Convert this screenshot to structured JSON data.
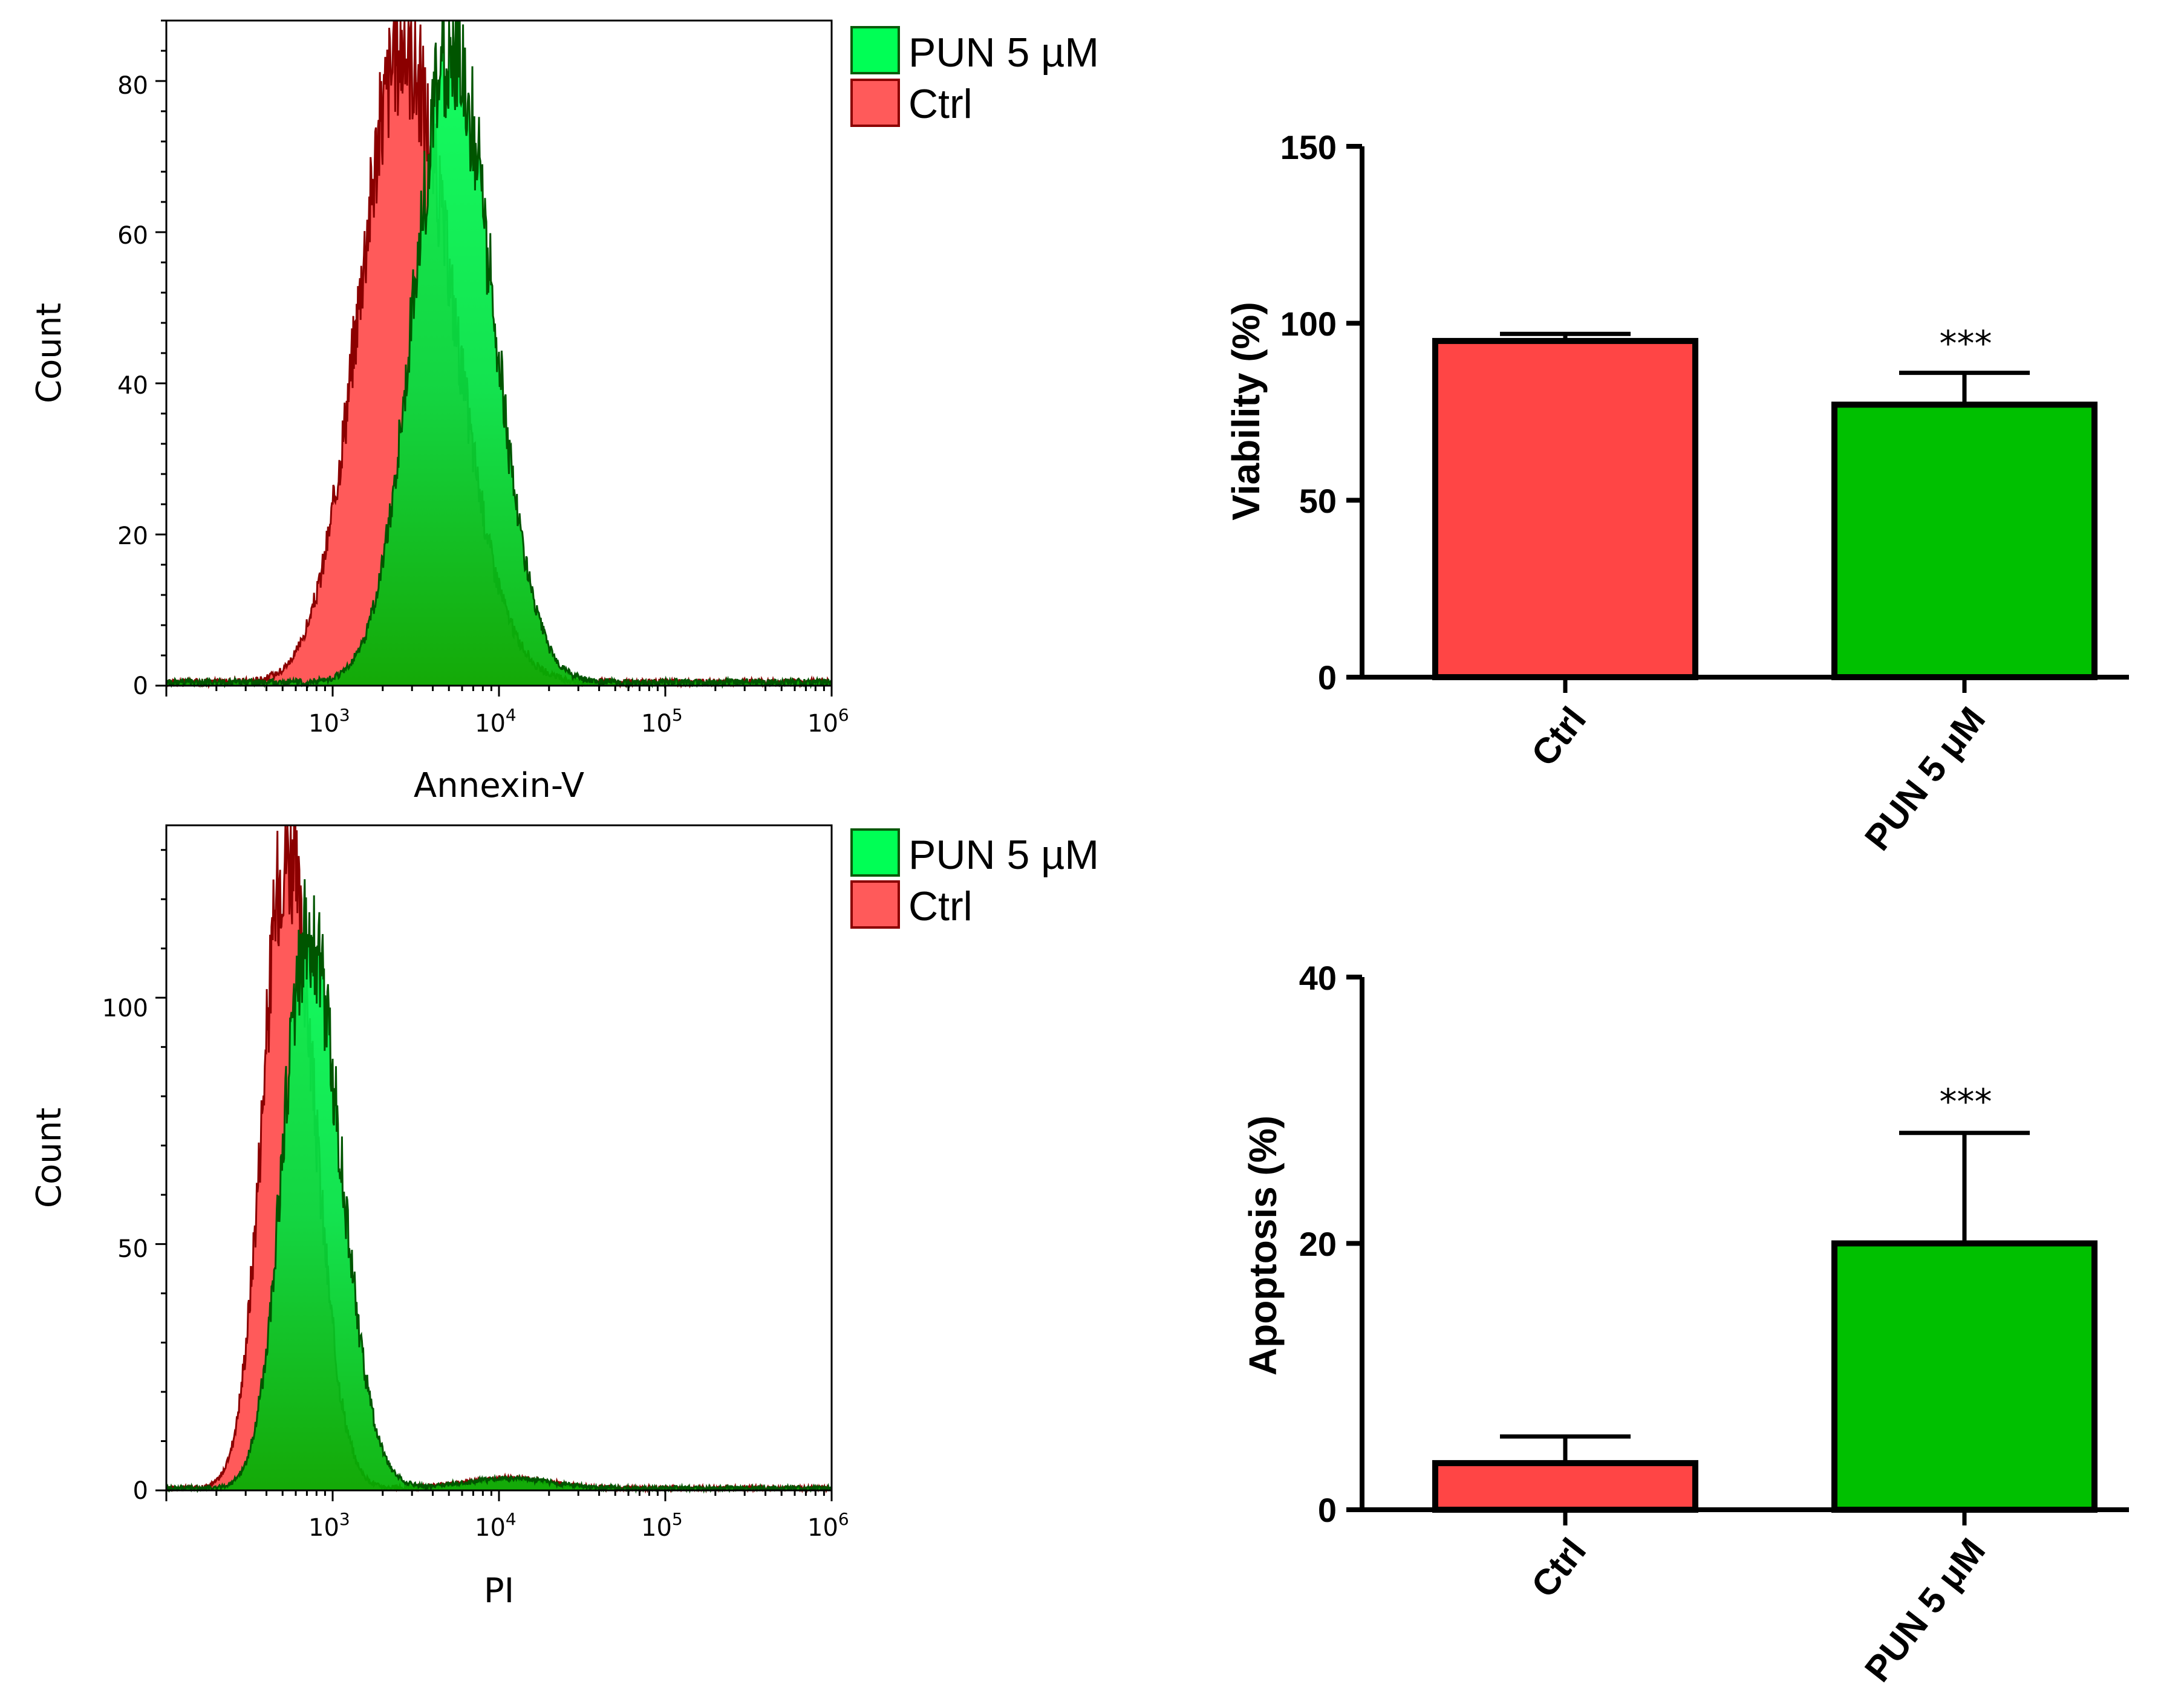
{
  "colors": {
    "ctrl_fill": "#ff5a5a",
    "ctrl_edge": "#8b0000",
    "pun_fill_top": "#00ff55",
    "pun_fill_bottom": "#00b000",
    "pun_edge": "#005500",
    "bar_red": "#ff4545",
    "bar_green": "#00c000"
  },
  "chart_data": [
    {
      "id": "annexin_histogram",
      "type": "area",
      "xlabel": "Annexin-V",
      "ylabel": "Count",
      "xscale": "log",
      "xlim_log10": [
        2.0,
        6.0
      ],
      "ylim": [
        0,
        88
      ],
      "yticks": [
        "0",
        "20",
        "40",
        "60",
        "80"
      ],
      "ytick_values": [
        0,
        20,
        40,
        60,
        80
      ],
      "xticks": [
        {
          "base": "10",
          "exp": "3",
          "value_log10": 3
        },
        {
          "base": "10",
          "exp": "4",
          "value_log10": 4
        },
        {
          "base": "10",
          "exp": "5",
          "value_log10": 5
        },
        {
          "base": "10",
          "exp": "6",
          "value_log10": 6
        }
      ],
      "legend": [
        "PUN 5 µM",
        "Ctrl"
      ],
      "legend_position": "top-right",
      "series": [
        {
          "name": "Ctrl",
          "peak_log10": 3.42,
          "peak_count": 84,
          "width_log10": 0.26,
          "skew": 1.15
        },
        {
          "name": "PUN 5 µM",
          "peak_log10": 3.72,
          "peak_count": 84,
          "width_log10": 0.23,
          "skew": 1.05
        }
      ]
    },
    {
      "id": "pi_histogram",
      "type": "area",
      "xlabel": "PI",
      "ylabel": "Count",
      "xscale": "log",
      "xlim_log10": [
        2.0,
        6.0
      ],
      "ylim": [
        0,
        135
      ],
      "yticks": [
        "0",
        "50",
        "100"
      ],
      "ytick_values": [
        0,
        50,
        100
      ],
      "xticks": [
        {
          "base": "10",
          "exp": "3",
          "value_log10": 3
        },
        {
          "base": "10",
          "exp": "4",
          "value_log10": 4
        },
        {
          "base": "10",
          "exp": "5",
          "value_log10": 5
        },
        {
          "base": "10",
          "exp": "6",
          "value_log10": 6
        }
      ],
      "legend": [
        "PUN 5 µM",
        "Ctrl"
      ],
      "legend_position": "top-right",
      "series": [
        {
          "name": "Ctrl",
          "peak_log10": 2.72,
          "peak_count": 130,
          "width_log10": 0.14,
          "skew": 1.2
        },
        {
          "name": "PUN 5 µM",
          "peak_log10": 2.85,
          "peak_count": 113,
          "width_log10": 0.15,
          "skew": 1.3
        }
      ]
    },
    {
      "id": "viability_bar",
      "type": "bar",
      "ylabel": "Viability (%)",
      "ylim": [
        0,
        150
      ],
      "yticks": [
        "0",
        "50",
        "100",
        "150"
      ],
      "ytick_values": [
        0,
        50,
        100,
        150
      ],
      "categories": [
        "Ctrl",
        "PUN 5 μM"
      ],
      "values": [
        95,
        77
      ],
      "errors": [
        2,
        9
      ],
      "annotations": [
        "",
        "***"
      ]
    },
    {
      "id": "apoptosis_bar",
      "type": "bar",
      "ylabel": "Apoptosis (%)",
      "ylim": [
        0,
        40
      ],
      "yticks": [
        "0",
        "20",
        "40"
      ],
      "ytick_values": [
        0,
        20,
        40
      ],
      "categories": [
        "Ctrl",
        "PUN 5 μM"
      ],
      "values": [
        3.5,
        20
      ],
      "errors": [
        2,
        8.3
      ],
      "annotations": [
        "",
        "***"
      ]
    }
  ]
}
